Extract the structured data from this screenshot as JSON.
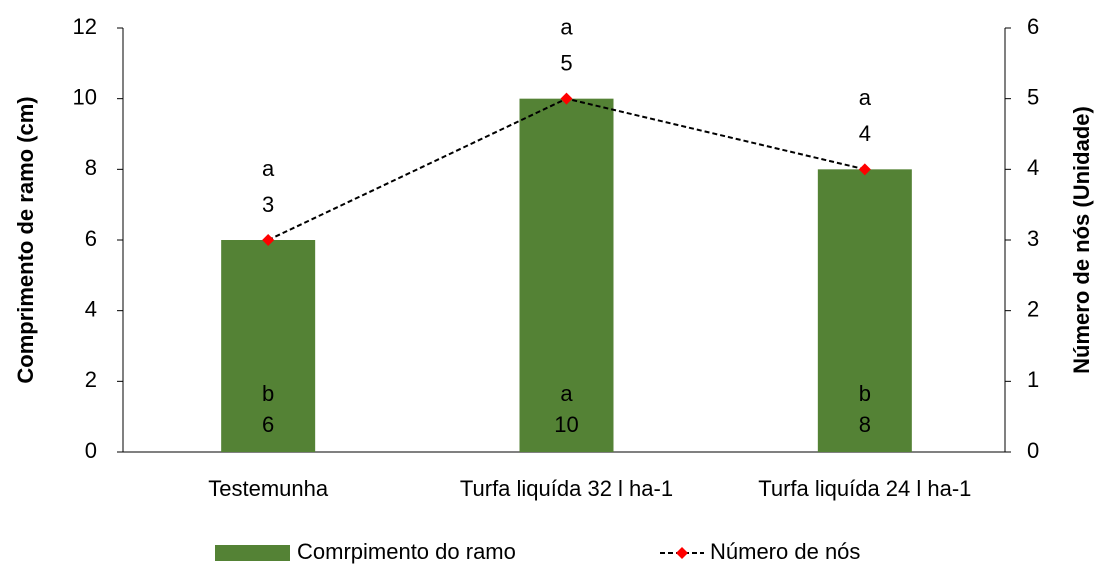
{
  "chart_data": {
    "type": "bar-line",
    "categories": [
      "Testemunha",
      "Turfa liquída 32 l ha-1",
      "Turfa liquída 24 l ha-1"
    ],
    "ylabel": "Comprimento de ramo (cm)",
    "y2label": "Número de nós (Unidade)",
    "ylim": [
      0,
      12
    ],
    "yticks": [
      0,
      2,
      4,
      6,
      8,
      10,
      12
    ],
    "y2lim": [
      0,
      6
    ],
    "y2ticks": [
      0,
      1,
      2,
      3,
      4,
      5,
      6
    ],
    "series": [
      {
        "name": "Comrpimento do ramo",
        "type": "bar",
        "color": "#548235",
        "values": [
          6,
          10,
          8
        ],
        "letters": [
          "b",
          "a",
          "b"
        ]
      },
      {
        "name": "Número de nós",
        "type": "line",
        "axis": "y2",
        "color": "#ff0000",
        "line_color": "#000000",
        "values": [
          3,
          5,
          4
        ],
        "letters": [
          "a",
          "a",
          "a"
        ]
      }
    ]
  }
}
